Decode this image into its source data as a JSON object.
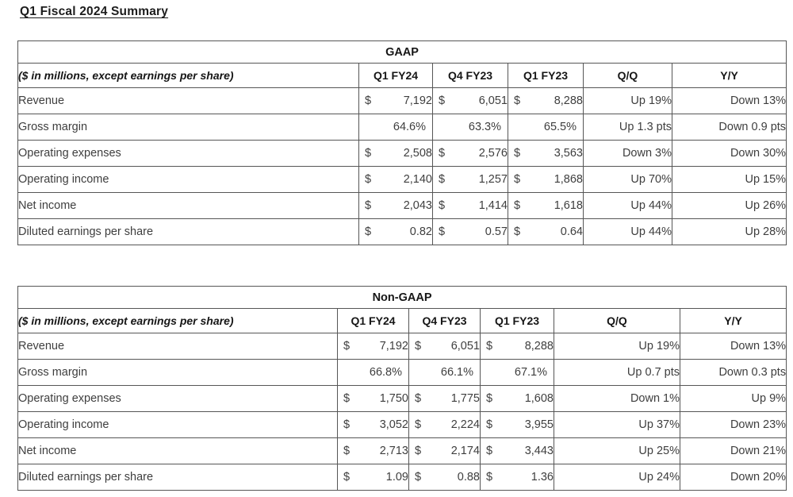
{
  "page": {
    "title": "Q1 Fiscal 2024 Summary"
  },
  "currency_symbol": "$",
  "tables": [
    {
      "title": "GAAP",
      "unit_label": "($ in millions, except earnings per share)",
      "columns": [
        "Q1 FY24",
        "Q4 FY23",
        "Q1 FY23",
        "Q/Q",
        "Y/Y"
      ],
      "rows": [
        {
          "label": "Revenue",
          "currency": true,
          "values": [
            "7,192",
            "6,051",
            "8,288"
          ],
          "qq": "Up 19%",
          "yy": "Down 13%"
        },
        {
          "label": "Gross margin",
          "currency": false,
          "values": [
            "64.6%",
            "63.3%",
            "65.5%"
          ],
          "qq": "Up 1.3 pts",
          "yy": "Down 0.9 pts"
        },
        {
          "label": "Operating expenses",
          "currency": true,
          "values": [
            "2,508",
            "2,576",
            "3,563"
          ],
          "qq": "Down 3%",
          "yy": "Down 30%"
        },
        {
          "label": "Operating income",
          "currency": true,
          "values": [
            "2,140",
            "1,257",
            "1,868"
          ],
          "qq": "Up 70%",
          "yy": "Up 15%"
        },
        {
          "label": "Net income",
          "currency": true,
          "values": [
            "2,043",
            "1,414",
            "1,618"
          ],
          "qq": "Up 44%",
          "yy": "Up 26%"
        },
        {
          "label": "Diluted earnings per share",
          "currency": true,
          "values": [
            "0.82",
            "0.57",
            "0.64"
          ],
          "qq": "Up 44%",
          "yy": "Up 28%"
        }
      ]
    },
    {
      "title": "Non-GAAP",
      "unit_label": "($ in millions, except earnings per share)",
      "columns": [
        "Q1 FY24",
        "Q4 FY23",
        "Q1 FY23",
        "Q/Q",
        "Y/Y"
      ],
      "rows": [
        {
          "label": "Revenue",
          "currency": true,
          "values": [
            "7,192",
            "6,051",
            "8,288"
          ],
          "qq": "Up 19%",
          "yy": "Down 13%"
        },
        {
          "label": "Gross margin",
          "currency": false,
          "values": [
            "66.8%",
            "66.1%",
            "67.1%"
          ],
          "qq": "Up 0.7 pts",
          "yy": "Down 0.3 pts"
        },
        {
          "label": "Operating expenses",
          "currency": true,
          "values": [
            "1,750",
            "1,775",
            "1,608"
          ],
          "qq": "Down 1%",
          "yy": "Up 9%"
        },
        {
          "label": "Operating income",
          "currency": true,
          "values": [
            "3,052",
            "2,224",
            "3,955"
          ],
          "qq": "Up 37%",
          "yy": "Down 23%"
        },
        {
          "label": "Net income",
          "currency": true,
          "values": [
            "2,713",
            "2,174",
            "3,443"
          ],
          "qq": "Up 25%",
          "yy": "Down 21%"
        },
        {
          "label": "Diluted earnings per share",
          "currency": true,
          "values": [
            "1.09",
            "0.88",
            "1.36"
          ],
          "qq": "Up 24%",
          "yy": "Down 20%"
        }
      ]
    }
  ]
}
